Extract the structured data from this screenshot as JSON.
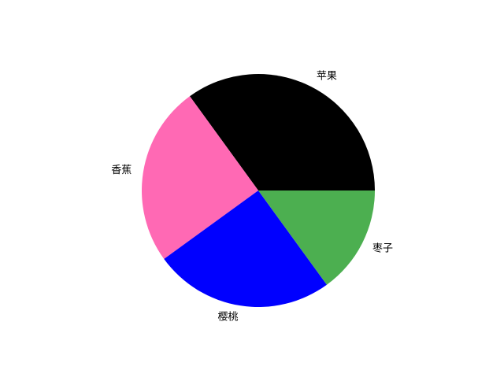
{
  "chart_data": {
    "type": "pie",
    "title": "",
    "categories": [
      "苹果",
      "香蕉",
      "樱桃",
      "枣子"
    ],
    "values": [
      35,
      25,
      25,
      15
    ],
    "colors": [
      "#000000",
      "#ff69b4",
      "#0000ff",
      "#4caf50"
    ],
    "start_angle_deg": 0,
    "direction": "counterclockwise"
  }
}
